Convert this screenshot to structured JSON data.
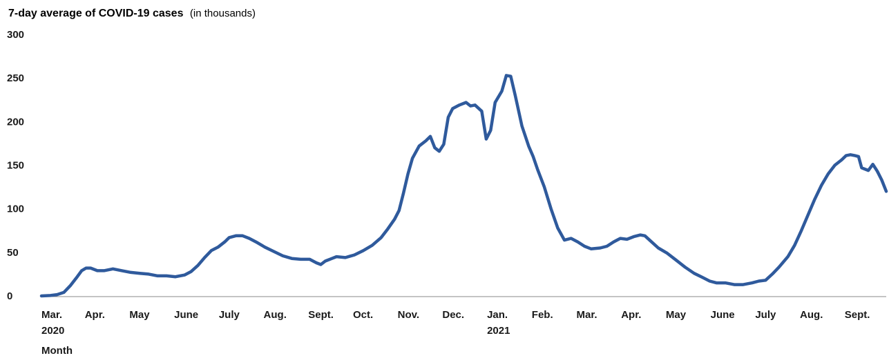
{
  "chart_data": {
    "type": "line",
    "title": "7-day average of COVID-19 cases",
    "subtitle": "(in thousands)",
    "xlabel": "Month",
    "ylabel": "",
    "ylim": [
      0,
      300
    ],
    "yticks": [
      "0",
      "50",
      "100",
      "150",
      "200",
      "250",
      "300"
    ],
    "xticks": [
      {
        "label": "Mar.",
        "year": "2020",
        "x": 0
      },
      {
        "label": "Apr.",
        "year": "",
        "x": 1
      },
      {
        "label": "May",
        "year": "",
        "x": 2
      },
      {
        "label": "June",
        "year": "",
        "x": 3
      },
      {
        "label": "July",
        "year": "",
        "x": 4
      },
      {
        "label": "Aug.",
        "year": "",
        "x": 5
      },
      {
        "label": "Sept.",
        "year": "",
        "x": 6
      },
      {
        "label": "Oct.",
        "year": "",
        "x": 7
      },
      {
        "label": "Nov.",
        "year": "",
        "x": 8
      },
      {
        "label": "Dec.",
        "year": "",
        "x": 9
      },
      {
        "label": "Jan.",
        "year": "2021",
        "x": 10
      },
      {
        "label": "Feb.",
        "year": "",
        "x": 11
      },
      {
        "label": "Mar.",
        "year": "",
        "x": 12
      },
      {
        "label": "Apr.",
        "year": "",
        "x": 13
      },
      {
        "label": "May",
        "year": "",
        "x": 14
      },
      {
        "label": "June",
        "year": "",
        "x": 15
      },
      {
        "label": "July",
        "year": "",
        "x": 16
      },
      {
        "label": "Aug.",
        "year": "",
        "x": 17
      },
      {
        "label": "Sept.",
        "year": "",
        "x": 18
      }
    ],
    "grid": false,
    "series": [
      {
        "name": "",
        "color": "#2f5a9c",
        "points": [
          [
            0,
            0
          ],
          [
            0.2,
            0.5
          ],
          [
            0.35,
            1.5
          ],
          [
            0.5,
            4
          ],
          [
            0.65,
            12
          ],
          [
            0.8,
            22
          ],
          [
            0.9,
            29
          ],
          [
            1.0,
            32
          ],
          [
            1.1,
            32
          ],
          [
            1.25,
            29
          ],
          [
            1.4,
            29
          ],
          [
            1.6,
            31
          ],
          [
            1.8,
            29
          ],
          [
            2.0,
            27
          ],
          [
            2.2,
            26
          ],
          [
            2.4,
            25
          ],
          [
            2.6,
            23
          ],
          [
            2.8,
            23
          ],
          [
            3.0,
            22
          ],
          [
            3.2,
            24
          ],
          [
            3.35,
            28
          ],
          [
            3.5,
            35
          ],
          [
            3.65,
            44
          ],
          [
            3.8,
            52
          ],
          [
            3.95,
            56
          ],
          [
            4.1,
            62
          ],
          [
            4.2,
            67
          ],
          [
            4.35,
            69
          ],
          [
            4.5,
            69
          ],
          [
            4.65,
            66
          ],
          [
            4.8,
            62
          ],
          [
            5.0,
            56
          ],
          [
            5.2,
            51
          ],
          [
            5.4,
            46
          ],
          [
            5.6,
            43
          ],
          [
            5.8,
            42
          ],
          [
            6.0,
            42
          ],
          [
            6.15,
            38
          ],
          [
            6.25,
            36
          ],
          [
            6.35,
            40
          ],
          [
            6.5,
            43
          ],
          [
            6.6,
            45
          ],
          [
            6.8,
            44
          ],
          [
            7.0,
            47
          ],
          [
            7.2,
            52
          ],
          [
            7.4,
            58
          ],
          [
            7.6,
            67
          ],
          [
            7.75,
            77
          ],
          [
            7.9,
            88
          ],
          [
            8.0,
            98
          ],
          [
            8.1,
            118
          ],
          [
            8.2,
            140
          ],
          [
            8.3,
            158
          ],
          [
            8.45,
            172
          ],
          [
            8.6,
            178
          ],
          [
            8.7,
            183
          ],
          [
            8.8,
            170
          ],
          [
            8.9,
            166
          ],
          [
            9.0,
            174
          ],
          [
            9.1,
            205
          ],
          [
            9.2,
            215
          ],
          [
            9.35,
            219
          ],
          [
            9.5,
            222
          ],
          [
            9.6,
            218
          ],
          [
            9.7,
            219
          ],
          [
            9.85,
            212
          ],
          [
            9.95,
            180
          ],
          [
            10.05,
            190
          ],
          [
            10.15,
            222
          ],
          [
            10.3,
            235
          ],
          [
            10.4,
            253
          ],
          [
            10.5,
            252
          ],
          [
            10.6,
            230
          ],
          [
            10.75,
            195
          ],
          [
            10.9,
            172
          ],
          [
            11.0,
            160
          ],
          [
            11.1,
            145
          ],
          [
            11.25,
            125
          ],
          [
            11.4,
            100
          ],
          [
            11.55,
            78
          ],
          [
            11.7,
            64
          ],
          [
            11.85,
            66
          ],
          [
            12.0,
            62
          ],
          [
            12.15,
            57
          ],
          [
            12.3,
            54
          ],
          [
            12.5,
            55
          ],
          [
            12.65,
            57
          ],
          [
            12.8,
            62
          ],
          [
            12.95,
            66
          ],
          [
            13.1,
            65
          ],
          [
            13.25,
            68
          ],
          [
            13.4,
            70
          ],
          [
            13.5,
            69
          ],
          [
            13.65,
            62
          ],
          [
            13.8,
            55
          ],
          [
            14.0,
            49
          ],
          [
            14.2,
            41
          ],
          [
            14.4,
            33
          ],
          [
            14.6,
            26
          ],
          [
            14.8,
            21
          ],
          [
            14.95,
            17
          ],
          [
            15.1,
            15
          ],
          [
            15.3,
            15
          ],
          [
            15.5,
            13
          ],
          [
            15.7,
            13
          ],
          [
            15.9,
            15
          ],
          [
            16.05,
            17
          ],
          [
            16.2,
            18
          ],
          [
            16.35,
            25
          ],
          [
            16.5,
            33
          ],
          [
            16.7,
            45
          ],
          [
            16.85,
            58
          ],
          [
            17.0,
            75
          ],
          [
            17.15,
            93
          ],
          [
            17.3,
            111
          ],
          [
            17.45,
            127
          ],
          [
            17.6,
            140
          ],
          [
            17.75,
            150
          ],
          [
            17.9,
            156
          ],
          [
            18.0,
            161
          ],
          [
            18.1,
            162
          ],
          [
            18.2,
            161
          ],
          [
            18.28,
            160
          ],
          [
            18.35,
            147
          ],
          [
            18.5,
            144
          ],
          [
            18.6,
            151
          ],
          [
            18.7,
            143
          ],
          [
            18.8,
            133
          ],
          [
            18.9,
            120
          ]
        ]
      }
    ]
  }
}
